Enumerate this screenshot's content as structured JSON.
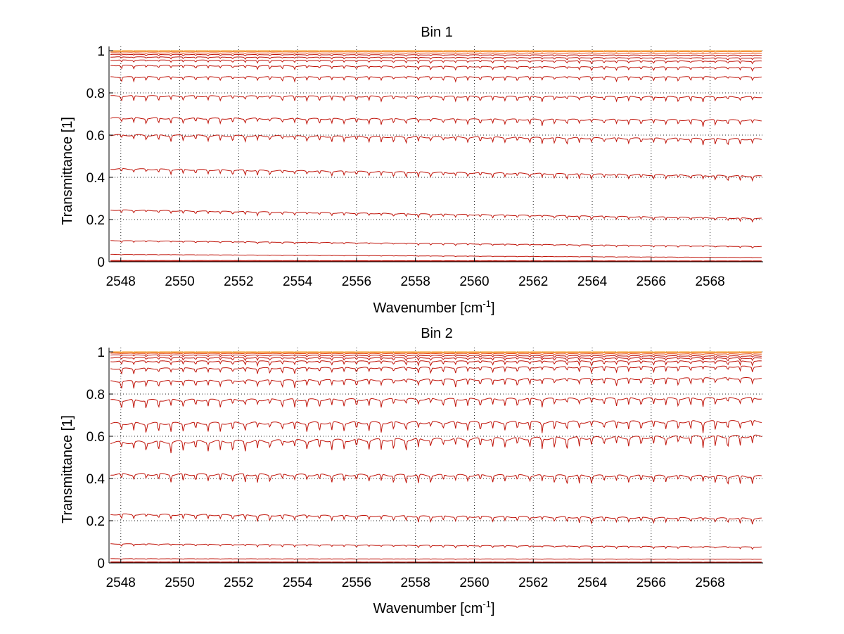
{
  "chart_data": [
    {
      "type": "line",
      "title": "Bin 1",
      "xlabel": "Wavenumber [cm",
      "xlabel_superscript": "-1",
      "xlabel_suffix": "]",
      "ylabel": "Transmittance [1]",
      "xlim": [
        2547.6,
        2569.8
      ],
      "ylim": [
        0,
        1.02
      ],
      "x_ticks": [
        2548,
        2550,
        2552,
        2554,
        2556,
        2558,
        2560,
        2562,
        2564,
        2566,
        2568
      ],
      "y_ticks": [
        0,
        0.2,
        0.4,
        0.6,
        0.8,
        1
      ],
      "y_tick_labels": [
        "0",
        "0.2",
        "0.4",
        "0.6",
        "0.8",
        "1"
      ],
      "grid": true,
      "line_color": "#c0140a",
      "top_colors": [
        "#e8501a",
        "#f07818",
        "#f49a1a",
        "#2a9ad0",
        "#e6b422"
      ],
      "series_levels": [
        {
          "start": 0.003,
          "end": 0.002,
          "dip": 0.001
        },
        {
          "start": 0.006,
          "end": 0.004,
          "dip": 0.001
        },
        {
          "start": 0.035,
          "end": 0.02,
          "dip": 0.002
        },
        {
          "start": 0.1,
          "end": 0.072,
          "dip": 0.006
        },
        {
          "start": 0.245,
          "end": 0.205,
          "dip": 0.012
        },
        {
          "start": 0.44,
          "end": 0.405,
          "dip": 0.018
        },
        {
          "start": 0.6,
          "end": 0.58,
          "dip": 0.022
        },
        {
          "start": 0.68,
          "end": 0.67,
          "dip": 0.02
        },
        {
          "start": 0.785,
          "end": 0.78,
          "dip": 0.018
        },
        {
          "start": 0.875,
          "end": 0.875,
          "dip": 0.015
        },
        {
          "start": 0.93,
          "end": 0.92,
          "dip": 0.012
        },
        {
          "start": 0.955,
          "end": 0.95,
          "dip": 0.009
        },
        {
          "start": 0.97,
          "end": 0.965,
          "dip": 0.007
        },
        {
          "start": 0.982,
          "end": 0.978,
          "dip": 0.005
        },
        {
          "start": 0.99,
          "end": 0.988,
          "dip": 0.003
        },
        {
          "start": 0.996,
          "end": 0.995,
          "dip": 0.002
        },
        {
          "start": 1.0,
          "end": 1.0,
          "dip": 0.001
        }
      ],
      "dip_period": 0.42
    },
    {
      "type": "line",
      "title": "Bin 2",
      "xlabel": "Wavenumber [cm",
      "xlabel_superscript": "-1",
      "xlabel_suffix": "]",
      "ylabel": "Transmittance [1]",
      "xlim": [
        2547.6,
        2569.8
      ],
      "ylim": [
        0,
        1.02
      ],
      "x_ticks": [
        2548,
        2550,
        2552,
        2554,
        2556,
        2558,
        2560,
        2562,
        2564,
        2566,
        2568
      ],
      "y_ticks": [
        0,
        0.2,
        0.4,
        0.6,
        0.8,
        1
      ],
      "y_tick_labels": [
        "0",
        "0.2",
        "0.4",
        "0.6",
        "0.8",
        "1"
      ],
      "grid": true,
      "line_color": "#c0140a",
      "top_colors": [
        "#e8501a",
        "#f07818",
        "#f49a1a",
        "#2a9ad0",
        "#e6b422"
      ],
      "series_levels": [
        {
          "start": 0.002,
          "end": 0.002,
          "dip": 0.001
        },
        {
          "start": 0.005,
          "end": 0.004,
          "dip": 0.001
        },
        {
          "start": 0.02,
          "end": 0.018,
          "dip": 0.002
        },
        {
          "start": 0.09,
          "end": 0.075,
          "dip": 0.008
        },
        {
          "start": 0.23,
          "end": 0.21,
          "dip": 0.02
        },
        {
          "start": 0.42,
          "end": 0.41,
          "dip": 0.03
        },
        {
          "start": 0.57,
          "end": 0.6,
          "dip": 0.04
        },
        {
          "start": 0.66,
          "end": 0.67,
          "dip": 0.035
        },
        {
          "start": 0.77,
          "end": 0.78,
          "dip": 0.03
        },
        {
          "start": 0.86,
          "end": 0.875,
          "dip": 0.025
        },
        {
          "start": 0.92,
          "end": 0.93,
          "dip": 0.02
        },
        {
          "start": 0.955,
          "end": 0.955,
          "dip": 0.015
        },
        {
          "start": 0.972,
          "end": 0.97,
          "dip": 0.01
        },
        {
          "start": 0.985,
          "end": 0.98,
          "dip": 0.007
        },
        {
          "start": 0.993,
          "end": 0.99,
          "dip": 0.004
        },
        {
          "start": 0.998,
          "end": 0.996,
          "dip": 0.002
        },
        {
          "start": 1.0,
          "end": 1.0,
          "dip": 0.001
        }
      ],
      "dip_period": 0.42
    }
  ]
}
